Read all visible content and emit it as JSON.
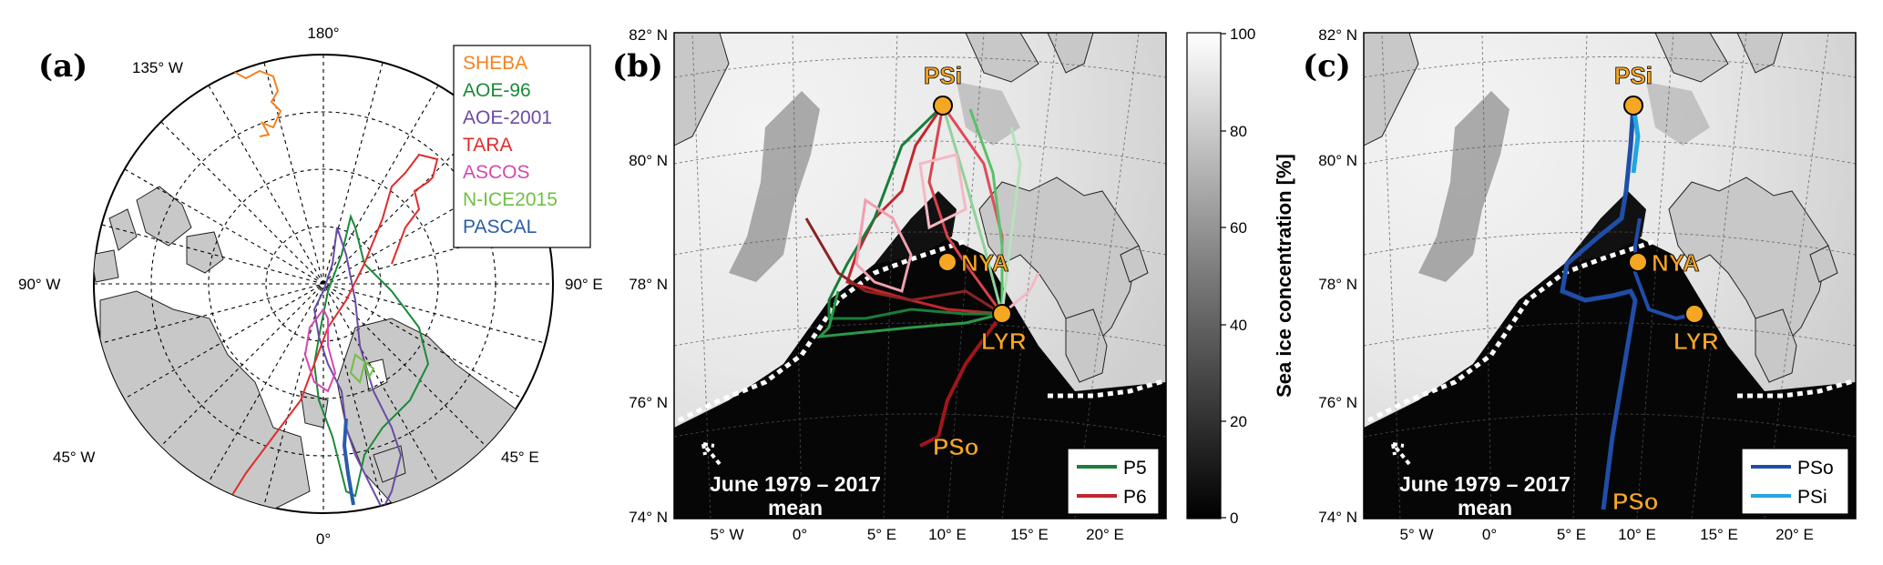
{
  "panel_a": {
    "label": "(a)",
    "lon_labels": {
      "top": "180°",
      "upper_left": "135° W",
      "left": "90° W",
      "right": "90° E",
      "lower_left": "45° W",
      "lower_right": "45° E",
      "bottom": "0°"
    },
    "legend": [
      {
        "name": "SHEBA",
        "color": "#f5821f"
      },
      {
        "name": "AOE-96",
        "color": "#1a8a3a"
      },
      {
        "name": "AOE-2001",
        "color": "#6a4ca5"
      },
      {
        "name": "TARA",
        "color": "#e02c2c"
      },
      {
        "name": "ASCOS",
        "color": "#d548b0"
      },
      {
        "name": "N-ICE2015",
        "color": "#6fbf43"
      },
      {
        "name": "PASCAL",
        "color": "#2a5caa"
      }
    ]
  },
  "panel_b": {
    "label": "(b)",
    "lat_labels": [
      "82° N",
      "80° N",
      "78° N",
      "76° N",
      "74° N"
    ],
    "lon_labels": [
      "5° W",
      "0°",
      "5° E",
      "10° E",
      "15° E",
      "20° E"
    ],
    "sites": [
      {
        "name": "PSi",
        "color": "#f5a623"
      },
      {
        "name": "NYA",
        "color": "#f5a623"
      },
      {
        "name": "LYR",
        "color": "#f5a623"
      }
    ],
    "pso_label": "PSo",
    "mean_line_label_1": "June 1979 – 2017",
    "mean_line_label_2": "mean",
    "legend": [
      {
        "name": "P5",
        "color": "#1a7d3a"
      },
      {
        "name": "P6",
        "color": "#c0272d"
      }
    ]
  },
  "colorbar": {
    "title": "Sea ice concentration [%]",
    "ticks": [
      "100",
      "80",
      "60",
      "40",
      "20",
      "0"
    ],
    "range": [
      0,
      100
    ]
  },
  "panel_c": {
    "label": "(c)",
    "lat_labels": [
      "82° N",
      "80° N",
      "78° N",
      "76° N",
      "74° N"
    ],
    "lon_labels": [
      "5° W",
      "0°",
      "5° E",
      "10° E",
      "15° E",
      "20° E"
    ],
    "sites": [
      {
        "name": "PSi",
        "color": "#f5a623"
      },
      {
        "name": "NYA",
        "color": "#f5a623"
      },
      {
        "name": "LYR",
        "color": "#f5a623"
      }
    ],
    "pso_label": "PSo",
    "mean_line_label_1": "June 1979 – 2017",
    "mean_line_label_2": "mean",
    "legend": [
      {
        "name": "PSo",
        "color": "#1f4ea8"
      },
      {
        "name": "PSi",
        "color": "#22a6e0"
      }
    ]
  }
}
